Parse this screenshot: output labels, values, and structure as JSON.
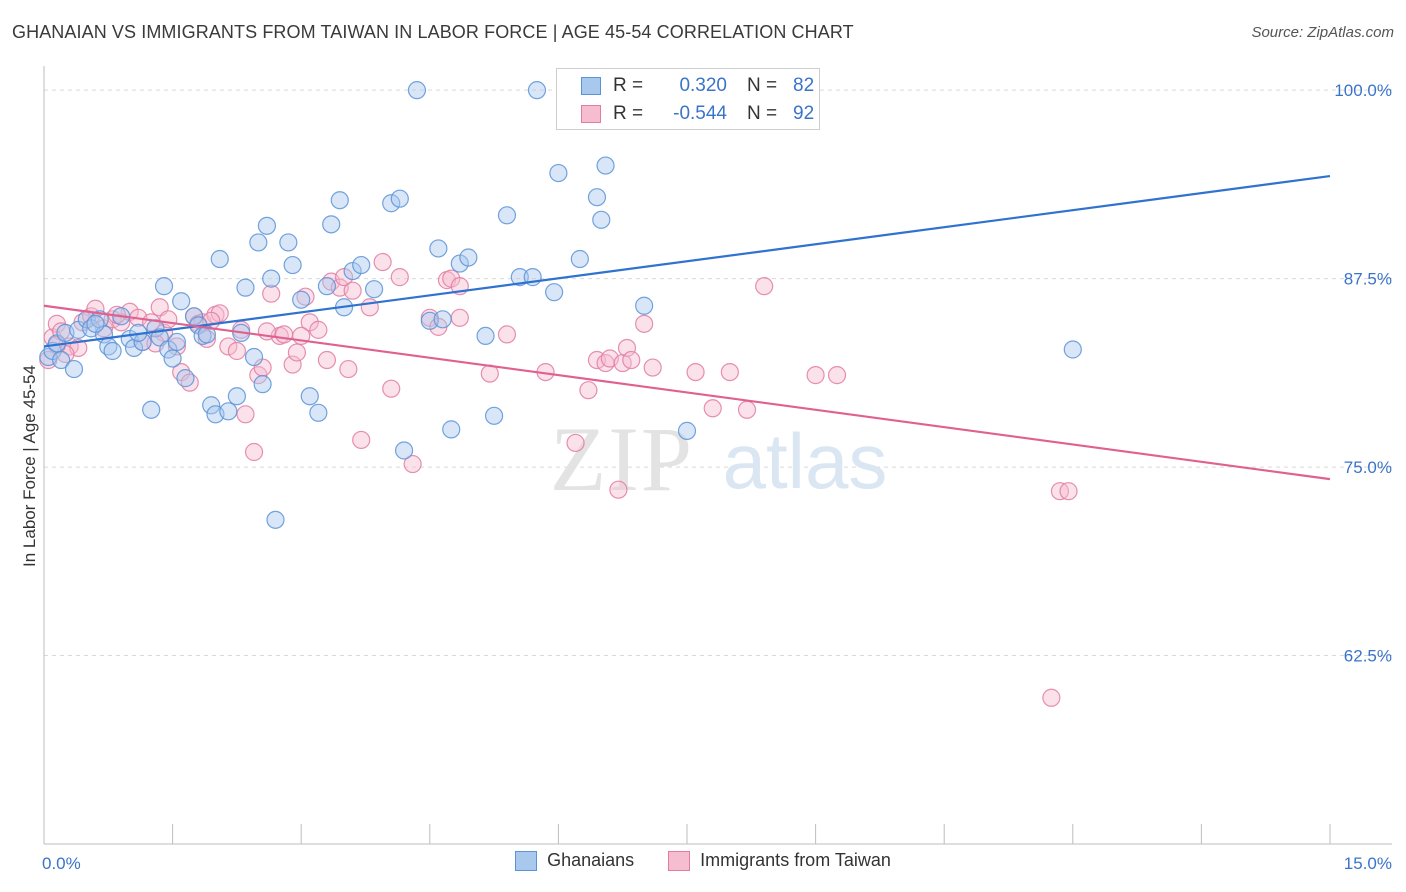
{
  "title": "GHANAIAN VS IMMIGRANTS FROM TAIWAN IN LABOR FORCE | AGE 45-54 CORRELATION CHART",
  "source": "Source: ZipAtlas.com",
  "watermark": {
    "zip": "ZIP",
    "atlas": "atlas"
  },
  "legend": {
    "r_label": "R =",
    "n_label": "N =",
    "series": [
      {
        "r": "0.320",
        "n": "82"
      },
      {
        "r": "-0.544",
        "n": "92"
      }
    ]
  },
  "bottom_legend": [
    "Ghanaians",
    "Immigrants from Taiwan"
  ],
  "colors": {
    "blue_fill": "#a9c8ee",
    "blue_stroke": "#5b93d8",
    "blue_line": "#2f72cf",
    "pink_fill": "#f6bdd0",
    "pink_stroke": "#e27ca2",
    "pink_line": "#e0608f",
    "tick_label": "#3a74c8",
    "grid": "#d9d9d9"
  },
  "chart_data": {
    "type": "scatter",
    "xlabel": "In Labor Force | Age 45-54",
    "ylabel": "In Labor Force | Age 45-54",
    "xlim": [
      0,
      15
    ],
    "ylim": [
      50,
      102
    ],
    "x_tick_labels": [
      "0.0%",
      "15.0%"
    ],
    "y_ticks": [
      62.5,
      75.0,
      87.5,
      100.0
    ],
    "y_tick_labels": [
      "62.5%",
      "75.0%",
      "87.5%",
      "100.0%"
    ],
    "grid": true,
    "series": [
      {
        "name": "Ghanaians",
        "trend": [
          [
            0,
            83.0
          ],
          [
            15,
            94.3
          ]
        ],
        "points": [
          [
            0.05,
            82.3
          ],
          [
            0.1,
            82.7
          ],
          [
            0.15,
            83.2
          ],
          [
            0.2,
            82.1
          ],
          [
            0.25,
            83.9
          ],
          [
            0.35,
            81.5
          ],
          [
            0.4,
            84.1
          ],
          [
            0.5,
            84.8
          ],
          [
            0.55,
            84.2
          ],
          [
            0.65,
            84.8
          ],
          [
            0.7,
            83.8
          ],
          [
            0.75,
            83.0
          ],
          [
            0.8,
            82.7
          ],
          [
            0.9,
            85.0
          ],
          [
            1.0,
            83.5
          ],
          [
            1.05,
            82.9
          ],
          [
            1.15,
            83.3
          ],
          [
            1.25,
            78.8
          ],
          [
            1.3,
            84.2
          ],
          [
            1.35,
            83.6
          ],
          [
            1.4,
            87.0
          ],
          [
            1.45,
            82.8
          ],
          [
            1.5,
            82.2
          ],
          [
            1.55,
            83.3
          ],
          [
            1.6,
            86.0
          ],
          [
            1.65,
            80.9
          ],
          [
            1.75,
            85.0
          ],
          [
            1.8,
            84.4
          ],
          [
            1.85,
            83.7
          ],
          [
            1.9,
            83.8
          ],
          [
            1.95,
            79.1
          ],
          [
            2.0,
            78.5
          ],
          [
            2.05,
            88.8
          ],
          [
            2.15,
            78.7
          ],
          [
            2.25,
            79.7
          ],
          [
            2.3,
            83.9
          ],
          [
            2.35,
            86.9
          ],
          [
            2.45,
            82.3
          ],
          [
            2.5,
            89.9
          ],
          [
            2.55,
            80.5
          ],
          [
            2.6,
            91.0
          ],
          [
            2.65,
            87.5
          ],
          [
            2.7,
            71.5
          ],
          [
            2.85,
            89.9
          ],
          [
            2.9,
            88.4
          ],
          [
            3.0,
            86.1
          ],
          [
            3.1,
            79.7
          ],
          [
            3.2,
            78.6
          ],
          [
            3.3,
            87.0
          ],
          [
            3.35,
            91.1
          ],
          [
            3.45,
            92.7
          ],
          [
            3.5,
            85.6
          ],
          [
            3.6,
            88.0
          ],
          [
            3.7,
            88.4
          ],
          [
            3.85,
            86.8
          ],
          [
            4.05,
            92.5
          ],
          [
            4.15,
            92.8
          ],
          [
            4.2,
            76.1
          ],
          [
            4.35,
            100.0
          ],
          [
            4.5,
            84.7
          ],
          [
            4.6,
            89.5
          ],
          [
            4.65,
            84.8
          ],
          [
            4.75,
            77.5
          ],
          [
            4.85,
            88.5
          ],
          [
            4.95,
            88.9
          ],
          [
            5.15,
            83.7
          ],
          [
            5.25,
            78.4
          ],
          [
            5.4,
            91.7
          ],
          [
            5.55,
            87.6
          ],
          [
            5.7,
            87.6
          ],
          [
            5.75,
            100.0
          ],
          [
            5.95,
            86.6
          ],
          [
            6.0,
            94.5
          ],
          [
            6.25,
            88.8
          ],
          [
            6.45,
            92.9
          ],
          [
            6.5,
            91.4
          ],
          [
            6.55,
            95.0
          ],
          [
            7.0,
            85.7
          ],
          [
            7.5,
            77.4
          ],
          [
            12.0,
            82.8
          ],
          [
            0.6,
            84.5
          ],
          [
            1.1,
            83.9
          ]
        ]
      },
      {
        "name": "Immigrants from Taiwan",
        "trend": [
          [
            0,
            85.7
          ],
          [
            15,
            74.2
          ]
        ],
        "points": [
          [
            0.05,
            82.1
          ],
          [
            0.1,
            83.6
          ],
          [
            0.15,
            84.5
          ],
          [
            0.2,
            84.0
          ],
          [
            0.3,
            83.0
          ],
          [
            0.45,
            84.6
          ],
          [
            0.55,
            85.0
          ],
          [
            0.6,
            85.5
          ],
          [
            0.7,
            84.2
          ],
          [
            0.8,
            84.8
          ],
          [
            0.9,
            84.6
          ],
          [
            1.0,
            85.3
          ],
          [
            1.1,
            84.9
          ],
          [
            1.15,
            83.3
          ],
          [
            1.25,
            84.6
          ],
          [
            1.35,
            85.6
          ],
          [
            1.4,
            83.9
          ],
          [
            1.45,
            84.8
          ],
          [
            1.55,
            83.0
          ],
          [
            1.6,
            81.3
          ],
          [
            1.7,
            80.6
          ],
          [
            1.75,
            85.0
          ],
          [
            1.8,
            84.5
          ],
          [
            1.85,
            84.6
          ],
          [
            1.9,
            83.5
          ],
          [
            2.0,
            85.1
          ],
          [
            2.05,
            85.2
          ],
          [
            2.15,
            83.0
          ],
          [
            2.25,
            82.7
          ],
          [
            2.3,
            84.1
          ],
          [
            2.35,
            78.5
          ],
          [
            2.45,
            76.0
          ],
          [
            2.5,
            81.1
          ],
          [
            2.55,
            81.6
          ],
          [
            2.65,
            86.5
          ],
          [
            2.75,
            83.7
          ],
          [
            2.8,
            83.8
          ],
          [
            2.9,
            81.8
          ],
          [
            2.95,
            82.6
          ],
          [
            3.05,
            86.3
          ],
          [
            3.1,
            84.6
          ],
          [
            3.2,
            84.1
          ],
          [
            3.3,
            82.1
          ],
          [
            3.35,
            87.3
          ],
          [
            3.45,
            86.9
          ],
          [
            3.5,
            87.6
          ],
          [
            3.55,
            81.5
          ],
          [
            3.6,
            86.7
          ],
          [
            3.7,
            76.8
          ],
          [
            3.8,
            85.6
          ],
          [
            3.95,
            88.6
          ],
          [
            4.05,
            80.2
          ],
          [
            4.15,
            87.6
          ],
          [
            4.3,
            75.2
          ],
          [
            4.5,
            84.9
          ],
          [
            4.6,
            84.3
          ],
          [
            4.7,
            87.4
          ],
          [
            4.75,
            87.5
          ],
          [
            4.85,
            87.0
          ],
          [
            5.2,
            81.2
          ],
          [
            5.4,
            83.8
          ],
          [
            5.85,
            81.3
          ],
          [
            6.2,
            76.6
          ],
          [
            6.35,
            80.1
          ],
          [
            6.45,
            82.1
          ],
          [
            6.55,
            81.9
          ],
          [
            6.6,
            82.2
          ],
          [
            6.7,
            73.5
          ],
          [
            6.75,
            81.9
          ],
          [
            6.8,
            82.9
          ],
          [
            6.85,
            82.1
          ],
          [
            7.0,
            84.5
          ],
          [
            7.1,
            81.6
          ],
          [
            7.6,
            81.3
          ],
          [
            7.8,
            78.9
          ],
          [
            8.0,
            81.3
          ],
          [
            8.2,
            78.8
          ],
          [
            8.4,
            87.0
          ],
          [
            9.0,
            81.1
          ],
          [
            9.25,
            81.1
          ],
          [
            11.85,
            73.4
          ],
          [
            11.95,
            73.4
          ],
          [
            11.75,
            59.7
          ],
          [
            0.4,
            82.9
          ],
          [
            0.85,
            85.1
          ],
          [
            1.3,
            83.2
          ],
          [
            2.6,
            84.0
          ],
          [
            3.0,
            83.7
          ],
          [
            0.25,
            82.5
          ],
          [
            0.15,
            83.1
          ],
          [
            1.95,
            84.7
          ],
          [
            4.85,
            84.9
          ]
        ]
      }
    ]
  }
}
